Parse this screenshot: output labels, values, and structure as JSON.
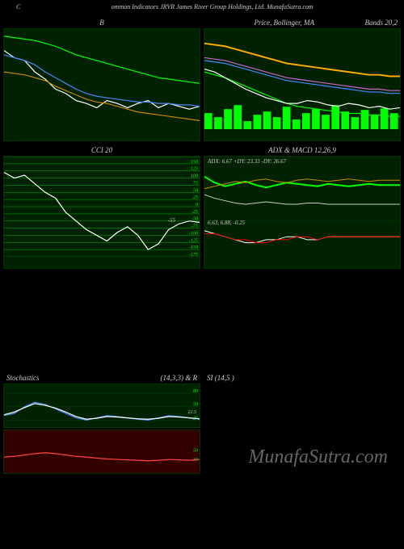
{
  "header": {
    "text": "ommon Indicators JRVR James River Group Holdings, Ltd. MunafaSutra.com",
    "left_label": "C"
  },
  "watermark": "MunafaSutra.com",
  "charts": {
    "topleft": {
      "title": "B",
      "type": "line",
      "background_color": "#002200",
      "series": [
        {
          "name": "price",
          "color": "#ffffff",
          "values": [
            85,
            80,
            78,
            70,
            65,
            58,
            55,
            50,
            48,
            45,
            50,
            48,
            45,
            48,
            50,
            45,
            48,
            46,
            44,
            46
          ]
        },
        {
          "name": "ma1",
          "color": "#4488ff",
          "values": [
            82,
            80,
            78,
            75,
            70,
            66,
            62,
            58,
            55,
            53,
            52,
            51,
            50,
            49,
            49,
            48,
            48,
            47,
            47,
            46
          ]
        },
        {
          "name": "ma2",
          "color": "#00ff00",
          "values": [
            95,
            94,
            93,
            92,
            90,
            88,
            85,
            82,
            80,
            78,
            76,
            74,
            72,
            70,
            68,
            66,
            65,
            64,
            63,
            62
          ]
        },
        {
          "name": "ma3",
          "color": "#cc8800",
          "values": [
            70,
            69,
            68,
            66,
            64,
            60,
            57,
            54,
            51,
            49,
            48,
            46,
            44,
            42,
            41,
            40,
            39,
            38,
            37,
            36
          ]
        }
      ],
      "ylim": [
        30,
        100
      ]
    },
    "topcenter": {
      "title": "Price, Bollinger, MA",
      "right_title": "Bands 20,2",
      "type": "line_with_volume",
      "background_color": "#002200",
      "series": [
        {
          "name": "upper",
          "color": "#ffaa00",
          "stroke_width": 2,
          "values": [
            90,
            89,
            88,
            86,
            84,
            82,
            80,
            78,
            76,
            75,
            74,
            73,
            72,
            71,
            70,
            69,
            68,
            68,
            67,
            67
          ]
        },
        {
          "name": "mid1",
          "color": "#cc66cc",
          "values": [
            80,
            79,
            78,
            76,
            74,
            72,
            70,
            68,
            66,
            65,
            64,
            63,
            62,
            61,
            60,
            59,
            58,
            58,
            57,
            57
          ]
        },
        {
          "name": "mid2",
          "color": "#4488ff",
          "values": [
            78,
            77,
            76,
            74,
            72,
            70,
            68,
            66,
            64,
            63,
            62,
            61,
            60,
            59,
            58,
            57,
            56,
            56,
            55,
            55
          ]
        },
        {
          "name": "lower",
          "color": "#00ff00",
          "values": [
            70,
            68,
            66,
            63,
            60,
            57,
            54,
            51,
            48,
            46,
            45,
            44,
            43,
            42,
            41,
            41,
            40,
            40,
            39,
            39
          ]
        },
        {
          "name": "price",
          "color": "#ffffff",
          "values": [
            72,
            70,
            66,
            62,
            58,
            55,
            52,
            50,
            48,
            48,
            50,
            49,
            47,
            46,
            48,
            47,
            45,
            46,
            44,
            45
          ]
        }
      ],
      "volume": {
        "color": "#00ff00",
        "values": [
          20,
          15,
          25,
          30,
          10,
          18,
          22,
          15,
          28,
          12,
          20,
          25,
          18,
          30,
          22,
          15,
          24,
          18,
          26,
          20
        ]
      },
      "ylim": [
        30,
        100
      ]
    },
    "midleft": {
      "title": "CCI 20",
      "type": "line",
      "background_color": "#002200",
      "grid_color": "#00aa00",
      "series": [
        {
          "name": "cci",
          "color": "#ffffff",
          "values": [
            120,
            100,
            110,
            80,
            50,
            30,
            -20,
            -50,
            -80,
            -100,
            -120,
            -90,
            -70,
            -100,
            -150,
            -130,
            -80,
            -60,
            -50,
            -55
          ]
        }
      ],
      "yticks": [
        175,
        150,
        125,
        100,
        75,
        50,
        25,
        0,
        -25,
        -50,
        -75,
        -100,
        -125,
        -150,
        -175
      ],
      "ylim": [
        -175,
        175
      ],
      "annotation": "-55"
    },
    "midright": {
      "title": "ADX & MACD 12,26,9",
      "subtitle": "ADX: 6.67 +DY: 23.33 -DY: 26.67",
      "type": "dual",
      "background_color": "#002200",
      "top_series": [
        {
          "name": "pdi",
          "color": "#00ff00",
          "stroke_width": 2,
          "values": [
            30,
            25,
            22,
            24,
            26,
            23,
            21,
            23,
            25,
            24,
            23,
            22,
            24,
            23,
            22,
            23,
            24,
            23,
            23,
            23
          ]
        },
        {
          "name": "mdi",
          "color": "#cc8800",
          "values": [
            20,
            22,
            24,
            26,
            25,
            27,
            28,
            26,
            25,
            27,
            28,
            27,
            26,
            27,
            28,
            27,
            26,
            27,
            27,
            27
          ]
        },
        {
          "name": "adx",
          "color": "#cccccc",
          "values": [
            15,
            12,
            10,
            8,
            7,
            8,
            9,
            8,
            7,
            7,
            8,
            8,
            7,
            7,
            7,
            7,
            7,
            7,
            7,
            7
          ]
        }
      ],
      "bottom_label": "6.63, 6.88, -0.25",
      "bottom_series": [
        {
          "name": "macd",
          "color": "#ffffff",
          "values": [
            2,
            1,
            0,
            -1,
            -2,
            -2,
            -1,
            -1,
            0,
            0,
            -1,
            -1,
            0,
            0,
            0,
            0,
            0,
            0,
            0,
            0
          ]
        },
        {
          "name": "signal",
          "color": "#ff0000",
          "values": [
            1,
            1,
            0,
            -1,
            -1,
            -2,
            -2,
            -1,
            -1,
            0,
            0,
            -1,
            0,
            0,
            0,
            0,
            0,
            0,
            0,
            0
          ]
        }
      ]
    },
    "stochastics": {
      "title_left": "Stochastics",
      "title_mid": "(14,3,3) & R",
      "title_right": "SI                    (14,5                    )",
      "top_panel": {
        "background_color": "#002200",
        "series": [
          {
            "name": "k",
            "color": "#4488ff",
            "values": [
              30,
              35,
              50,
              60,
              55,
              45,
              35,
              25,
              20,
              25,
              30,
              28,
              25,
              22,
              20,
              25,
              30,
              28,
              25,
              22
            ]
          },
          {
            "name": "d",
            "color": "#ffffff",
            "values": [
              32,
              38,
              48,
              57,
              53,
              47,
              38,
              28,
              22,
              24,
              28,
              27,
              25,
              23,
              22,
              24,
              28,
              27,
              25,
              23
            ]
          }
        ],
        "yticks": [
          80,
          50,
          20
        ],
        "annotation": "22.5"
      },
      "bottom_panel": {
        "background_color": "#330000",
        "series": [
          {
            "name": "rsi",
            "color": "#ff4444",
            "values": [
              40,
              42,
              45,
              48,
              50,
              48,
              45,
              42,
              40,
              38,
              36,
              35,
              34,
              33,
              32,
              33,
              35,
              34,
              33,
              35
            ]
          }
        ],
        "yticks": [
          50,
          30
        ]
      }
    }
  }
}
